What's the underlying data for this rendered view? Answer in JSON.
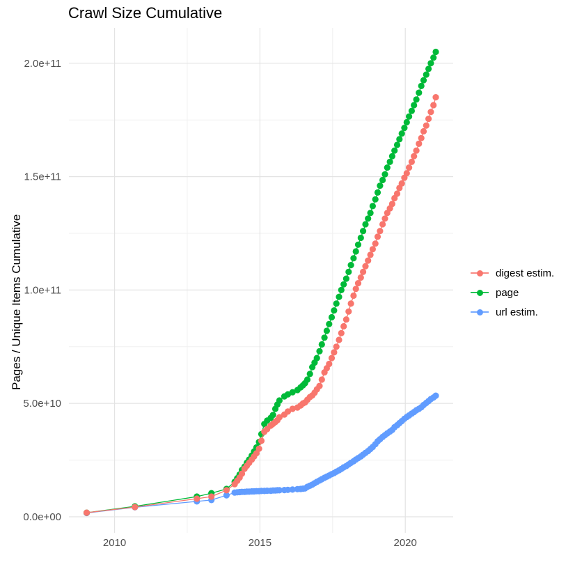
{
  "title": "Crawl Size Cumulative",
  "legend": {
    "position": "right",
    "items": [
      {
        "label": "digest estim.",
        "color": "#F8766D"
      },
      {
        "label": "page",
        "color": "#00BA38"
      },
      {
        "label": "url estim.",
        "color": "#619CFF"
      }
    ]
  },
  "chart_data": {
    "type": "line",
    "title": "Crawl Size Cumulative",
    "xlabel": "",
    "ylabel": "Pages / Unique Items Cumulative",
    "grid": true,
    "legend_position": "right",
    "units_note": "values_e9 are in units of 1e9 (billions); x is decimal year",
    "xlim": [
      2008.4,
      2021.65
    ],
    "ylim_e9": [
      -7,
      216.5
    ],
    "x_ticks": {
      "major": [
        2010,
        2015,
        2020
      ],
      "labels": [
        "2010",
        "2015",
        "2020"
      ],
      "minor": [
        2012.5,
        2017.5
      ]
    },
    "y_ticks": {
      "major_values_e9": [
        0,
        50,
        100,
        150,
        200
      ],
      "labels": [
        "0.0e+00",
        "5.0e+10",
        "1.0e+11",
        "1.5e+11",
        "2.0e+11"
      ],
      "minor_values_e9": [
        25,
        75,
        125,
        175
      ]
    },
    "x": [
      2009.04,
      2010.7,
      2012.83,
      2013.33,
      2013.85,
      2014.13,
      2014.22,
      2014.3,
      2014.38,
      2014.47,
      2014.55,
      2014.63,
      2014.72,
      2014.8,
      2014.88,
      2014.97,
      2015.05,
      2015.15,
      2015.25,
      2015.37,
      2015.45,
      2015.53,
      2015.6,
      2015.67,
      2015.84,
      2015.96,
      2016.12,
      2016.29,
      2016.4,
      2016.48,
      2016.55,
      2016.63,
      2016.72,
      2016.8,
      2016.88,
      2016.96,
      2017.05,
      2017.13,
      2017.22,
      2017.3,
      2017.38,
      2017.47,
      2017.55,
      2017.63,
      2017.72,
      2017.8,
      2017.88,
      2017.97,
      2018.05,
      2018.13,
      2018.22,
      2018.3,
      2018.38,
      2018.47,
      2018.55,
      2018.63,
      2018.72,
      2018.8,
      2018.88,
      2018.97,
      2019.05,
      2019.13,
      2019.22,
      2019.3,
      2019.38,
      2019.47,
      2019.55,
      2019.63,
      2019.72,
      2019.8,
      2019.88,
      2019.97,
      2020.05,
      2020.13,
      2020.22,
      2020.3,
      2020.38,
      2020.47,
      2020.55,
      2020.63,
      2020.72,
      2020.8,
      2020.88,
      2020.97,
      2021.05
    ],
    "series": [
      {
        "name": "digest estim.",
        "color": "#F8766D",
        "values_e9": [
          1.8,
          4.3,
          8.0,
          8.9,
          11.7,
          14.4,
          15.9,
          17.3,
          19.0,
          21.2,
          22.5,
          23.8,
          25.2,
          26.6,
          28.0,
          30.0,
          33.5,
          37.5,
          38.7,
          40.2,
          41.0,
          41.8,
          42.6,
          43.9,
          45.1,
          46.4,
          47.6,
          48.2,
          49.1,
          50.0,
          50.4,
          51.6,
          52.8,
          53.5,
          54.7,
          56.2,
          57.7,
          60.5,
          63.7,
          65.5,
          67.4,
          70.0,
          72.5,
          75.0,
          78.0,
          81.0,
          84.0,
          87.0,
          90.5,
          94.0,
          97.5,
          100.5,
          103.0,
          105.5,
          108.0,
          110.5,
          113.0,
          115.5,
          118.0,
          120.5,
          123.5,
          126.0,
          129.0,
          131.5,
          134.0,
          136.0,
          138.0,
          140.5,
          142.5,
          145.0,
          147.0,
          149.5,
          151.5,
          154.0,
          156.5,
          159.0,
          161.5,
          164.5,
          167.0,
          170.0,
          172.5,
          175.5,
          178.5,
          181.5,
          185.0
        ]
      },
      {
        "name": "page",
        "color": "#00BA38",
        "values_e9": [
          1.8,
          4.6,
          8.9,
          10.4,
          12.3,
          15.4,
          17.0,
          18.6,
          20.6,
          22.1,
          23.8,
          25.2,
          27.0,
          28.8,
          30.6,
          33.0,
          36.5,
          40.9,
          42.4,
          43.6,
          44.9,
          47.6,
          49.5,
          51.3,
          53.1,
          54.0,
          54.9,
          55.9,
          57.1,
          58.0,
          58.9,
          60.5,
          63.0,
          66.0,
          68.0,
          70.0,
          73.0,
          76.0,
          79.0,
          82.0,
          85.0,
          88.0,
          91.0,
          94.0,
          97.0,
          100.0,
          102.5,
          105.0,
          108.0,
          111.0,
          114.0,
          117.0,
          120.0,
          123.0,
          126.0,
          129.0,
          131.5,
          134.0,
          137.0,
          140.0,
          143.0,
          146.0,
          148.5,
          151.0,
          154.0,
          156.5,
          159.0,
          161.5,
          164.0,
          166.5,
          169.0,
          171.5,
          174.0,
          176.5,
          179.0,
          181.5,
          184.0,
          187.0,
          190.0,
          192.5,
          195.0,
          197.5,
          200.0,
          202.5,
          205.0
        ]
      },
      {
        "name": "url estim.",
        "color": "#619CFF",
        "values_e9": [
          1.7,
          4.2,
          6.8,
          7.4,
          9.5,
          10.7,
          10.8,
          10.9,
          11.0,
          11.0,
          11.1,
          11.1,
          11.2,
          11.2,
          11.3,
          11.3,
          11.4,
          11.4,
          11.5,
          11.5,
          11.6,
          11.6,
          11.7,
          11.7,
          11.8,
          11.9,
          12.0,
          12.2,
          12.3,
          12.4,
          12.5,
          13.2,
          13.7,
          14.2,
          14.8,
          15.4,
          16.0,
          16.6,
          17.2,
          17.7,
          18.2,
          18.8,
          19.3,
          19.9,
          20.5,
          21.1,
          21.8,
          22.4,
          23.1,
          23.8,
          24.5,
          25.2,
          25.9,
          26.6,
          27.4,
          28.2,
          29.0,
          29.9,
          30.8,
          32.0,
          33.3,
          34.2,
          35.2,
          36.0,
          36.8,
          37.6,
          38.3,
          39.5,
          40.4,
          41.3,
          42.2,
          43.2,
          44.0,
          44.7,
          45.5,
          46.2,
          47.0,
          47.6,
          48.3,
          49.3,
          50.2,
          51.0,
          51.9,
          52.6,
          53.4
        ]
      }
    ]
  }
}
